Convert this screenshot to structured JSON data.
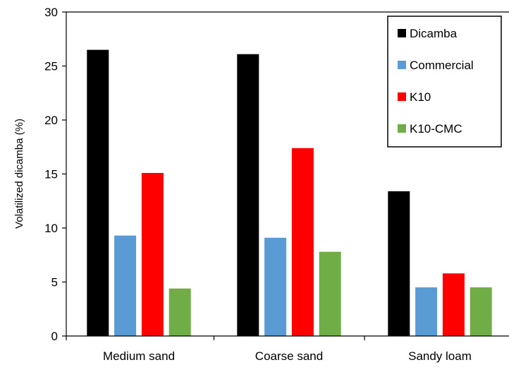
{
  "chart_data": {
    "type": "bar",
    "title": "",
    "xlabel": "",
    "ylabel": "Volatilized dicamba (%)",
    "ylim": [
      0,
      30
    ],
    "yticks": [
      0,
      5,
      10,
      15,
      20,
      25,
      30
    ],
    "grid": false,
    "legend_position": "top-right",
    "categories": [
      "Medium sand",
      "Coarse sand",
      "Sandy loam"
    ],
    "series": [
      {
        "name": "Dicamba",
        "color": "#000000",
        "values": [
          26.5,
          26.1,
          13.4
        ]
      },
      {
        "name": "Commercial",
        "color": "#5b9bd5",
        "values": [
          9.3,
          9.1,
          4.5
        ]
      },
      {
        "name": "K10",
        "color": "#ff0000",
        "values": [
          15.1,
          17.4,
          5.8
        ]
      },
      {
        "name": "K10-CMC",
        "color": "#70ad47",
        "values": [
          4.4,
          7.8,
          4.5
        ]
      }
    ]
  }
}
